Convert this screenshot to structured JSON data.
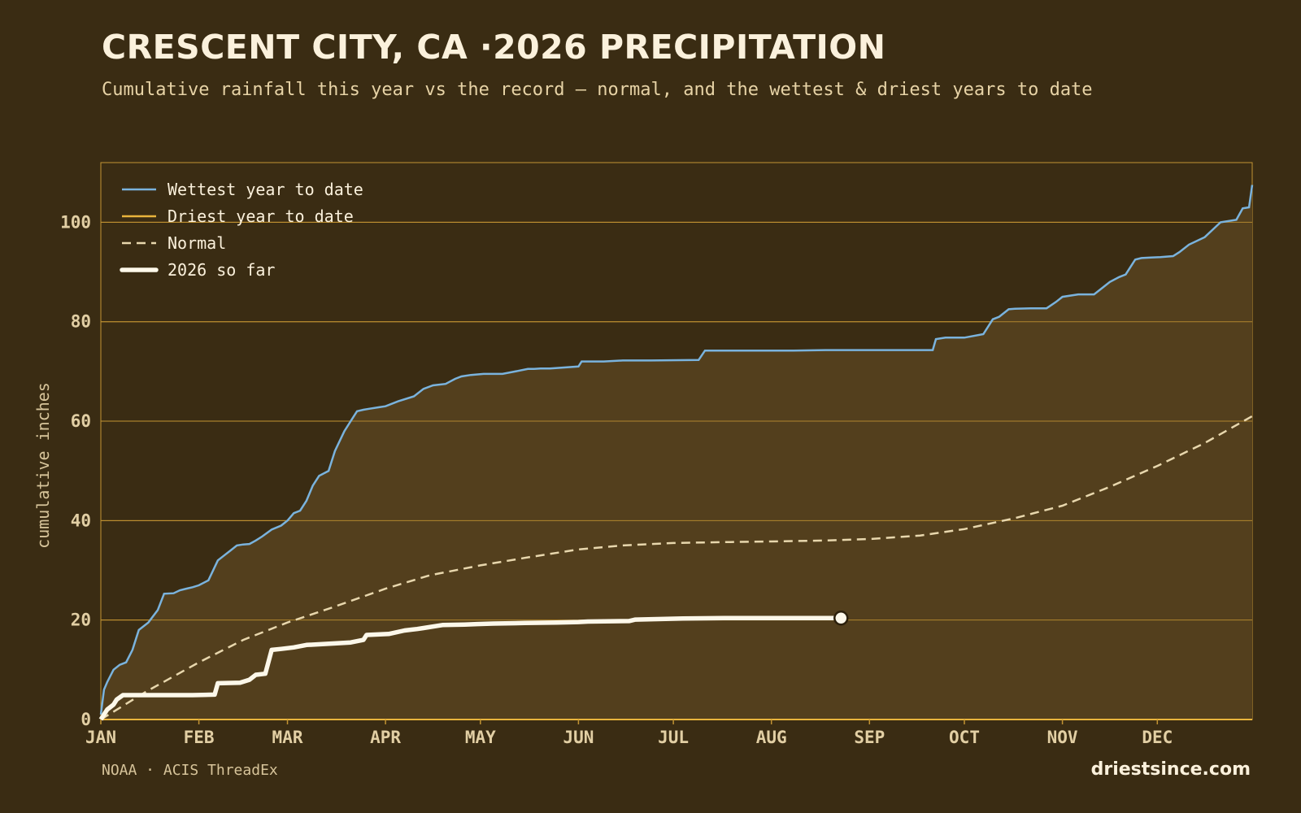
{
  "header": {
    "title": "CRESCENT CITY, CA ·2026 PRECIPITATION",
    "subtitle": "Cumulative rainfall this year vs the record — normal, and the wettest & driest years to date"
  },
  "footer": {
    "source": "NOAA · ACIS ThreadEx",
    "brand": "driestsince.com"
  },
  "colors": {
    "background": "#3a2c13",
    "plot_fill": "#533f1d",
    "grid": "#c29333",
    "wettest": "#7ab3dd",
    "driest": "#e9b43c",
    "normal": "#e8d7ad",
    "current": "#fdf8ea"
  },
  "chart_data": {
    "type": "line",
    "title": "CRESCENT CITY, CA ·2026 PRECIPITATION",
    "ylabel": "cumulative inches",
    "xlabel": "",
    "xlim": [
      1,
      365
    ],
    "ylim": [
      0,
      112
    ],
    "y_ticks": [
      0,
      20,
      40,
      60,
      80,
      100
    ],
    "x_tick_labels": [
      "JAN",
      "FEB",
      "MAR",
      "APR",
      "MAY",
      "JUN",
      "JUL",
      "AUG",
      "SEP",
      "OCT",
      "NOV",
      "DEC"
    ],
    "x_tick_days": [
      1,
      32,
      60,
      91,
      121,
      152,
      182,
      213,
      244,
      274,
      305,
      335
    ],
    "x_unit": "day of year",
    "grid": true,
    "legend_position": "top-left",
    "series": [
      {
        "name": "Wettest year to date",
        "style": "solid",
        "x": [
          1,
          2,
          3,
          5,
          7,
          9,
          11,
          13,
          16,
          19,
          21,
          24,
          26,
          28,
          30,
          32,
          35,
          38,
          40,
          42,
          44,
          46,
          48,
          50,
          52,
          55,
          58,
          60,
          62,
          64,
          66,
          68,
          70,
          73,
          75,
          78,
          80,
          82,
          84,
          86,
          89,
          91,
          95,
          100,
          103,
          106,
          110,
          113,
          115,
          118,
          122,
          125,
          128,
          132,
          136,
          138,
          140,
          143,
          152,
          153,
          155,
          160,
          166,
          175,
          190,
          192,
          195,
          200,
          210,
          220,
          230,
          240,
          250,
          260,
          264,
          265,
          268,
          274,
          280,
          283,
          285,
          288,
          290,
          295,
          300,
          303,
          305,
          310,
          315,
          318,
          320,
          323,
          325,
          328,
          330,
          333,
          336,
          340,
          342,
          345,
          350,
          355,
          360,
          362,
          364,
          365
        ],
        "y": [
          1,
          6,
          7.5,
          10,
          11,
          11.5,
          14,
          18,
          19.5,
          22,
          25.3,
          25.4,
          26,
          26.3,
          26.6,
          27,
          28,
          32,
          33,
          34,
          35,
          35.2,
          35.3,
          36,
          36.8,
          38.2,
          39,
          40,
          41.5,
          42,
          44,
          47,
          49,
          50,
          54,
          58,
          60,
          62,
          62.3,
          62.5,
          62.8,
          63,
          64,
          65,
          66.5,
          67.2,
          67.5,
          68.5,
          69,
          69.3,
          69.5,
          69.5,
          69.5,
          70,
          70.5,
          70.5,
          70.6,
          70.6,
          71,
          72,
          72,
          72,
          72.2,
          72.2,
          72.3,
          74.2,
          74.2,
          74.2,
          74.2,
          74.2,
          74.3,
          74.3,
          74.3,
          74.3,
          74.3,
          76.5,
          76.8,
          76.8,
          77.5,
          80.5,
          81,
          82.5,
          82.6,
          82.7,
          82.7,
          84,
          85,
          85.5,
          85.5,
          87,
          88,
          89,
          89.5,
          92.5,
          92.8,
          92.9,
          93,
          93.2,
          94,
          95.5,
          97,
          100,
          100.5,
          102.8,
          103,
          107.5
        ]
      },
      {
        "name": "Driest year to date",
        "style": "solid",
        "x": [
          1,
          365
        ],
        "y": [
          0,
          0
        ]
      },
      {
        "name": "Normal",
        "style": "dashed",
        "x": [
          1,
          15,
          32,
          46,
          60,
          74,
          91,
          105,
          121,
          135,
          152,
          166,
          182,
          200,
          213,
          230,
          244,
          260,
          274,
          290,
          305,
          320,
          335,
          350,
          365
        ],
        "y": [
          0,
          5.5,
          11.5,
          16,
          19.5,
          22.5,
          26.3,
          29,
          31,
          32.5,
          34.2,
          35,
          35.5,
          35.7,
          35.8,
          36,
          36.3,
          37,
          38.3,
          40.5,
          43,
          46.8,
          51,
          55.6,
          61
        ]
      },
      {
        "name": "2026 so far",
        "style": "thick",
        "x": [
          1,
          3,
          5,
          6,
          8,
          30,
          37,
          38,
          45,
          48,
          50,
          53,
          55,
          58,
          62,
          66,
          75,
          80,
          84,
          85,
          92,
          97,
          101,
          103,
          109,
          116,
          120,
          125,
          135,
          145,
          152,
          155,
          168,
          170,
          185,
          200,
          210,
          225,
          235
        ],
        "y": [
          0,
          2,
          3,
          4,
          4.9,
          4.9,
          5,
          7.3,
          7.4,
          8,
          9,
          9.2,
          14,
          14.2,
          14.5,
          15,
          15.3,
          15.5,
          16,
          17,
          17.2,
          17.9,
          18.2,
          18.4,
          19,
          19.1,
          19.2,
          19.3,
          19.4,
          19.5,
          19.6,
          19.7,
          19.8,
          20.1,
          20.3,
          20.4,
          20.4,
          20.4,
          20.4
        ]
      }
    ]
  }
}
